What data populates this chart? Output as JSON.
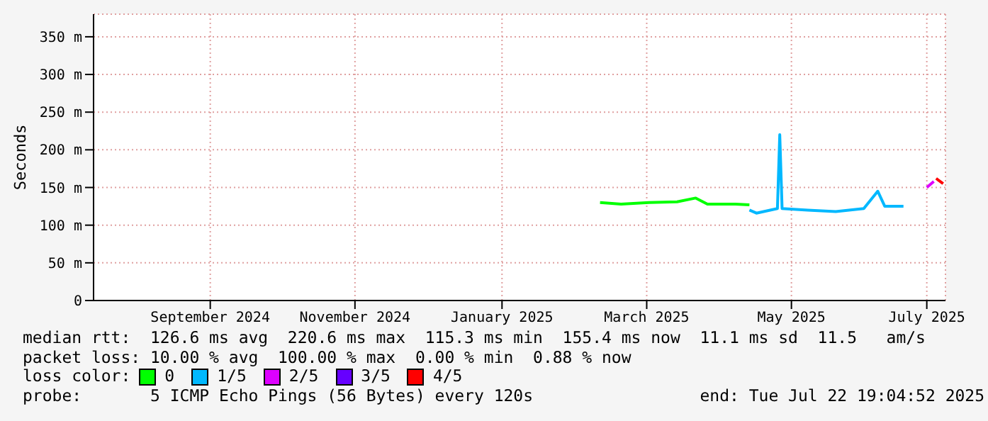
{
  "chart_data": {
    "type": "line",
    "ylabel": "Seconds",
    "legend_title": "loss color:",
    "legend": "bottom",
    "grid": true,
    "marker": "none",
    "line_style": "solid",
    "xlim": [
      "2024-07-22",
      "2025-07-22"
    ],
    "xticks": [
      {
        "value": "2024-09-10",
        "label": "September 2024"
      },
      {
        "value": "2024-11-11",
        "label": "November 2024"
      },
      {
        "value": "2025-01-13",
        "label": "January 2025"
      },
      {
        "value": "2025-03-16",
        "label": "March 2025"
      },
      {
        "value": "2025-05-17",
        "label": "May 2025"
      },
      {
        "value": "2025-07-14",
        "label": "July 2025"
      }
    ],
    "ylim": [
      0,
      380
    ],
    "yticks": [
      0,
      {
        "value": 50,
        "label": "50 m"
      },
      {
        "value": 100,
        "label": "100 m"
      },
      {
        "value": 150,
        "label": "150 m"
      },
      {
        "value": 200,
        "label": "200 m"
      },
      {
        "value": 250,
        "label": "250 m"
      },
      {
        "value": 300,
        "label": "300 m"
      },
      {
        "value": 350,
        "label": "350 m"
      }
    ],
    "series": [
      {
        "name": "0",
        "color": "#00ff00",
        "x": [
          "2025-02-24",
          "2025-03-05",
          "2025-03-17",
          "2025-03-29",
          "2025-04-06",
          "2025-04-11",
          "2025-04-23",
          "2025-04-29"
        ],
        "values": [
          130,
          128,
          130,
          131,
          136,
          128,
          128,
          127
        ]
      },
      {
        "name": "1/5",
        "color": "#00b8ff",
        "x": [
          "2025-04-29",
          "2025-05-02",
          "2025-05-11",
          "2025-05-12",
          "2025-05-13",
          "2025-05-24",
          "2025-06-05",
          "2025-06-17",
          "2025-06-23",
          "2025-06-26",
          "2025-07-04"
        ],
        "values": [
          120,
          116,
          122,
          220,
          122,
          120,
          118,
          122,
          145,
          125,
          125
        ]
      },
      {
        "name": "2/5",
        "color": "#dd00ff",
        "x": [
          "2025-07-14",
          "2025-07-17"
        ],
        "values": [
          150,
          158
        ]
      },
      {
        "name": "3/5",
        "color": "#6600ff"
      },
      {
        "name": "4/5",
        "color": "#ff0000",
        "x": [
          "2025-07-18",
          "2025-07-21"
        ],
        "values": [
          162,
          155
        ]
      }
    ],
    "annotations": [
      "median rtt:  126.6 ms avg  220.6 ms max  115.3 ms min  155.4 ms now  11.1 ms sd  11.5   am/s",
      "packet loss: 10.00 % avg  100.00 % max  0.00 % min  0.88 % now",
      "probe:       5 ICMP Echo Pings (56 Bytes) every 120s                 end: Tue Jul 22 19:04:52 2025"
    ]
  }
}
